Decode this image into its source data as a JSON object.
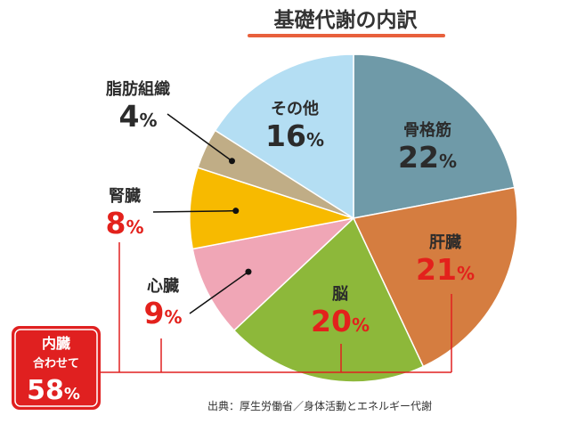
{
  "title": "基礎代謝の内訳",
  "source": "出典：厚生労働省／身体活動とエネルギー代謝",
  "colors": {
    "title_underline": "#e8603c",
    "bracket": "#e02020",
    "red_text": "#e3211c",
    "dark_text": "#2b2b2b"
  },
  "summary_box": {
    "line1": "内臓",
    "line2": "合わせて",
    "value": "58",
    "unit": "%"
  },
  "chart_data": {
    "type": "pie",
    "title": "基礎代謝の内訳",
    "start": "12 o'clock",
    "direction": "clockwise",
    "slices": [
      {
        "label": "骨格筋",
        "value": 22,
        "color": "#6f9aa8",
        "label_color": "#2b2b2b"
      },
      {
        "label": "肝臓",
        "value": 21,
        "color": "#d57d40",
        "label_color": "#e3211c"
      },
      {
        "label": "脳",
        "value": 20,
        "color": "#8db83a",
        "label_color": "#e3211c"
      },
      {
        "label": "心臓",
        "value": 9,
        "color": "#f0a6b6",
        "label_color": "#e3211c"
      },
      {
        "label": "腎臓",
        "value": 8,
        "color": "#f7ba00",
        "label_color": "#e3211c"
      },
      {
        "label": "脂肪組織",
        "value": 4,
        "color": "#c0ad86",
        "label_color": "#2b2b2b"
      },
      {
        "label": "その他",
        "value": 16,
        "color": "#b4def3",
        "label_color": "#2b2b2b"
      }
    ],
    "unit": "%"
  }
}
